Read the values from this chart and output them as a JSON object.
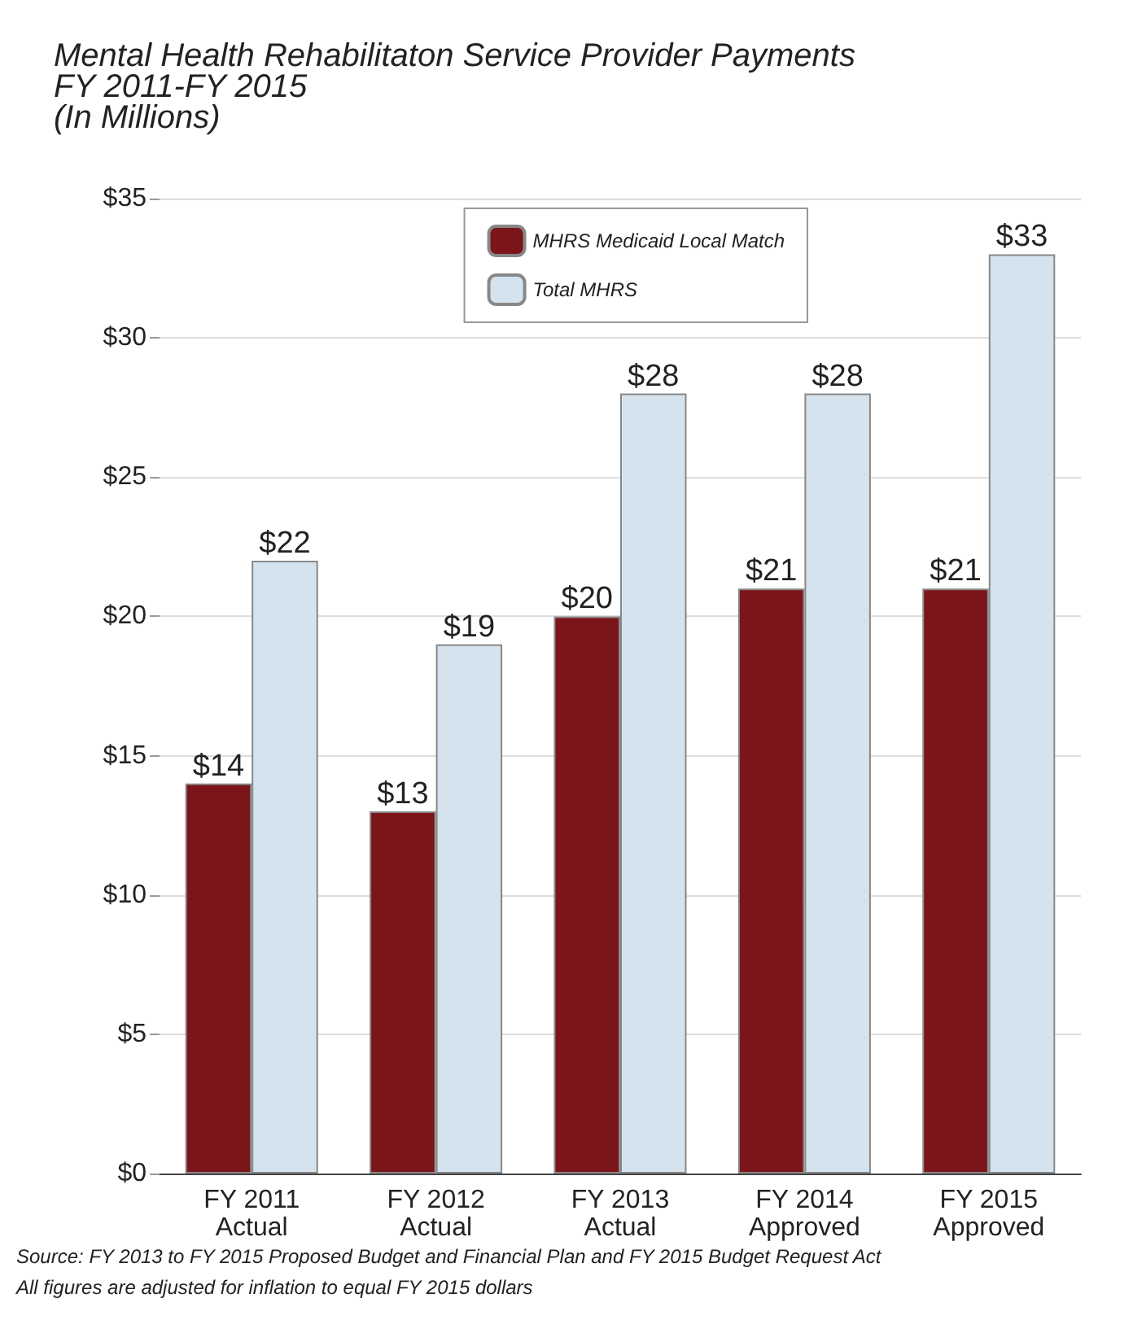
{
  "chart_data": {
    "type": "bar",
    "title": "Mental Health Rehabilitaton Service Provider Payments\nFY 2011-FY 2015\n(In Millions)",
    "categories": [
      "FY 2011\nActual",
      "FY 2012\nActual",
      "FY 2013\nActual",
      "FY 2014\nApproved",
      "FY 2015\nApproved"
    ],
    "series": [
      {
        "name": "MHRS Medicaid Local Match",
        "color": "#7b1519",
        "values": [
          14,
          13,
          20,
          21,
          21
        ],
        "value_labels": [
          "$14",
          "$13",
          "$20",
          "$21",
          "$21"
        ]
      },
      {
        "name": "Total MHRS",
        "color": "#d5e3ef",
        "values": [
          22,
          19,
          28,
          28,
          33
        ],
        "value_labels": [
          "$22",
          "$19",
          "$28",
          "$28",
          "$33"
        ]
      }
    ],
    "ylim": [
      0,
      35
    ],
    "yticks": [
      {
        "value": 0,
        "label": "$0"
      },
      {
        "value": 5,
        "label": "$5"
      },
      {
        "value": 10,
        "label": "$10"
      },
      {
        "value": 15,
        "label": "$15"
      },
      {
        "value": 20,
        "label": "$20"
      },
      {
        "value": 25,
        "label": "$25"
      },
      {
        "value": 30,
        "label": "$30"
      },
      {
        "value": 35,
        "label": "$35"
      }
    ],
    "grid": "y",
    "legend": "top right",
    "annotations": [
      "Source: FY 2013 to FY 2015 Proposed Budget and Financial Plan and FY 2015 Budget Request Act",
      "All figures are adjusted for inflation to equal FY 2015 dollars"
    ]
  }
}
